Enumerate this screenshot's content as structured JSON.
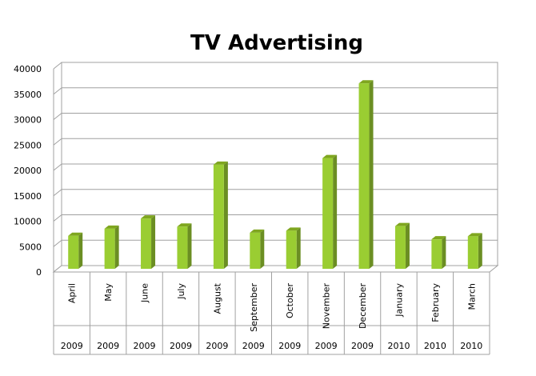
{
  "chart_data": {
    "type": "bar",
    "title": "TV Advertising",
    "xlabel": "",
    "ylabel": "",
    "ylim": [
      0,
      40000
    ],
    "yticks": [
      0,
      5000,
      10000,
      15000,
      20000,
      25000,
      30000,
      35000,
      40000
    ],
    "grid": true,
    "legend": "none",
    "bar_color": "#9ACD32",
    "categories": [
      {
        "month": "April",
        "year": "2009"
      },
      {
        "month": "May",
        "year": "2009"
      },
      {
        "month": "June",
        "year": "2009"
      },
      {
        "month": "July",
        "year": "2009"
      },
      {
        "month": "August",
        "year": "2009"
      },
      {
        "month": "September",
        "year": "2009"
      },
      {
        "month": "October",
        "year": "2009"
      },
      {
        "month": "November",
        "year": "2009"
      },
      {
        "month": "December",
        "year": "2009"
      },
      {
        "month": "January",
        "year": "2010"
      },
      {
        "month": "February",
        "year": "2010"
      },
      {
        "month": "March",
        "year": "2010"
      }
    ],
    "values": [
      6500,
      7900,
      9900,
      8300,
      20500,
      7100,
      7500,
      21800,
      36500,
      8400,
      5800,
      6400
    ]
  }
}
